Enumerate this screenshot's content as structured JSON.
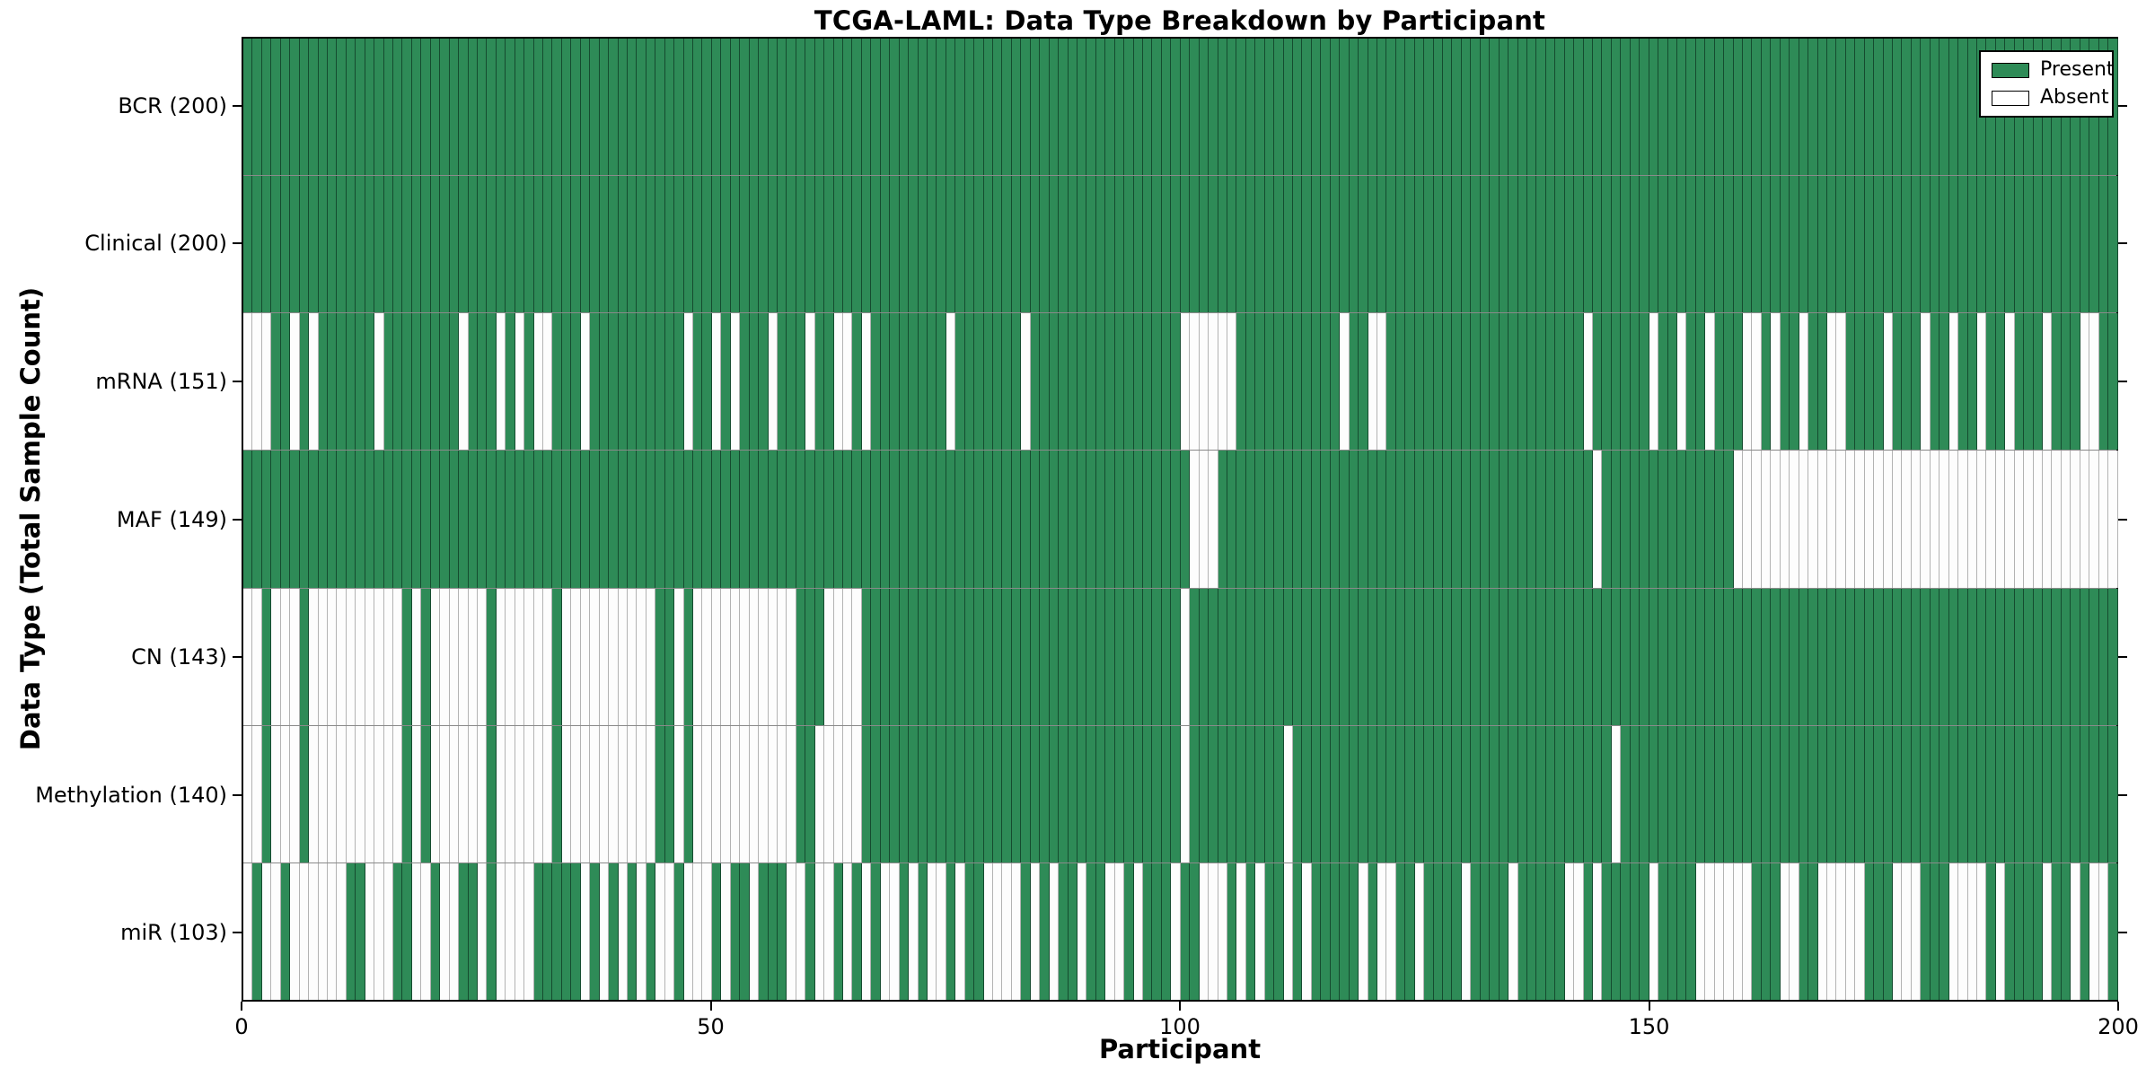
{
  "chart_data": {
    "type": "heatmap",
    "title": "TCGA-LAML: Data Type Breakdown by Participant",
    "xlabel": "Participant",
    "ylabel": "Data Type (Total Sample Count)",
    "x_axis": {
      "range": [
        0,
        200
      ],
      "ticks": [
        0,
        50,
        100,
        150,
        200
      ],
      "tick_labels": [
        "0",
        "50",
        "100",
        "150",
        "200"
      ]
    },
    "grid": "row separators only",
    "cell_encoding": "per row: 200 chars, index = participant 0..199, 1 = Present (green), 0 = Absent (white)",
    "rows": [
      {
        "data_type": "BCR",
        "label": "BCR (200)",
        "present_count": 200,
        "pattern": "11111111111111111111111111111111111111111111111111111111111111111111111111111111111111111111111111111111111111111111111111111111111111111111111111111111111111111111111111111111111111111111111111111111"
      },
      {
        "data_type": "Clinical",
        "label": "Clinical (200)",
        "present_count": 200,
        "pattern": "11111111111111111111111111111111111111111111111111111111111111111111111111111111111111111111111111111111111111111111111111111111111111111111111111111111111111111111111111111111111111111111111111111111"
      },
      {
        "data_type": "mRNA",
        "label": "mRNA (151)",
        "present_count": 151,
        "pattern": "00011010111111011111111011101010011101111111111011010111011101100101111111101111111011111111111111110000001111111111101100111111111111111111111011111101101101110010110110011110111011011011011101110011 11"
      },
      {
        "data_type": "MAF",
        "label": "MAF (149)",
        "present_count": 149,
        "pattern": "11111111111111111111111111111111111111111111111111111111111111111111111111111111111111111111111111111000111111111111111111111111111111111111111101111111111111100000000000000000000000000000000000000000"
      },
      {
        "data_type": "CN",
        "label": "CN (143)",
        "present_count": 143,
        "pattern": "00100010000000000101000000100000010000000000110100000000000111000011111111111111111111111111111111110111111111111111111111111111111111111111111111111111111111111111111111111111111111111111111111111111 0111111111"
      },
      {
        "data_type": "Methylation",
        "label": "Methylation (140)",
        "present_count": 140,
        "pattern": "00100010000000000101000000100000010000000000110100000000000110000011111111111111111111111111111111110111111111101111111111111111111111111111111111011111111111111111111111111111111111111111111111111111 11110111110111111111"
      },
      {
        "data_type": "miR",
        "label": "miR (103)",
        "present_count": 103,
        "pattern": "01001000000110001100100110100001111101010101001000101101110010010101001010010110000101011011001011101100010101101011111010011011110111101111100101111101111000000111001100000111000111000010111101101001"
      }
    ],
    "legend": {
      "position": "upper right",
      "entries": [
        {
          "label": "Present",
          "color": "#2e8b57"
        },
        {
          "label": "Absent",
          "color": "#ffffff"
        }
      ]
    },
    "colors": {
      "present": "#2e8b57",
      "absent": "#ffffff",
      "plot_border": "#000000",
      "row_separator": "#8a8a8a",
      "present_cell_edge": "#0d3621",
      "absent_cell_edge": "#b3b3b3"
    }
  }
}
